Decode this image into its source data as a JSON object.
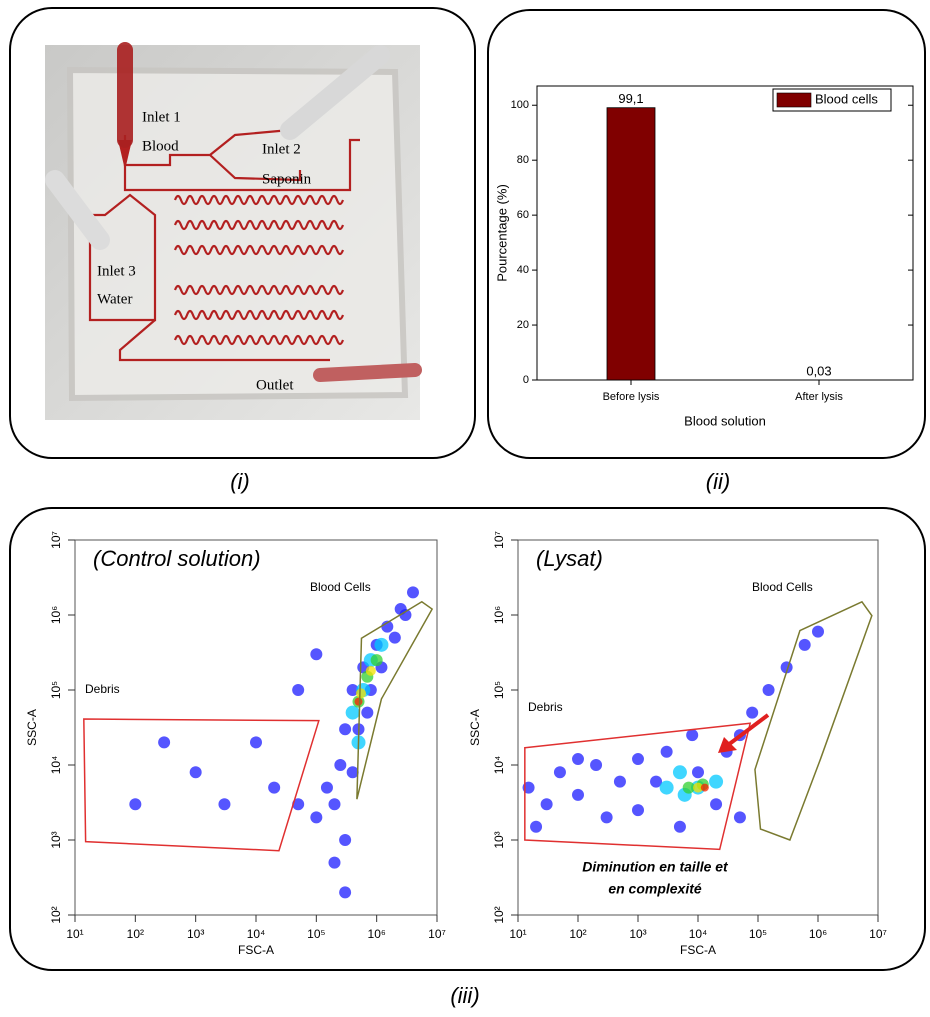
{
  "figure": {
    "captions": [
      "(i)",
      "(ii)",
      "(iii)"
    ]
  },
  "photo": {
    "labels": [
      "Inlet 1",
      "Blood",
      "Inlet 2",
      "Saponin",
      "Inlet 3",
      "Water",
      "Outlet"
    ]
  },
  "chart_data": [
    {
      "type": "bar",
      "xlabel": "Blood solution",
      "ylabel": "Pourcentage (%)",
      "categories": [
        "Before lysis",
        "After lysis"
      ],
      "series": [
        {
          "name": "Blood cells",
          "color": "#800000",
          "values": [
            99.1,
            0.03
          ],
          "value_labels": [
            "99,1",
            "0,03"
          ]
        }
      ],
      "ylim": [
        0,
        107
      ],
      "yticks": [
        0,
        20,
        40,
        60,
        80,
        100
      ],
      "legend": "upper right"
    },
    {
      "type": "scatter",
      "title": "(Control solution)",
      "xlabel": "FSC-A",
      "ylabel": "SSC-A",
      "xscale": "log",
      "yscale": "log",
      "xlim": [
        10,
        10000000
      ],
      "ylim": [
        100,
        10000000
      ],
      "xticks": [
        {
          "value": 10,
          "label": "10¹"
        },
        {
          "value": 100,
          "label": "10²"
        },
        {
          "value": 1000,
          "label": "10³"
        },
        {
          "value": 10000,
          "label": "10⁴"
        },
        {
          "value": 100000,
          "label": "10⁵"
        },
        {
          "value": 1000000,
          "label": "10⁶"
        },
        {
          "value": 10000000,
          "label": "10⁷"
        }
      ],
      "yticks": [
        {
          "value": 100,
          "label": "10²"
        },
        {
          "value": 1000,
          "label": "10³"
        },
        {
          "value": 10000,
          "label": "10⁴"
        },
        {
          "value": 100000,
          "label": "10⁵"
        },
        {
          "value": 1000000,
          "label": "10⁶"
        },
        {
          "value": 10000000,
          "label": "10⁷"
        }
      ],
      "series": [
        {
          "color": "#1c1cff",
          "marker_size": 6,
          "x": [
            200000,
            250000,
            300000,
            400000,
            600000,
            1000000,
            1500000,
            2500000,
            300000,
            200000,
            150000,
            800000,
            1200000,
            2000000,
            3000000,
            500000,
            700000,
            400000,
            100000,
            50000,
            20000,
            10000,
            3000,
            1000,
            300,
            100,
            50000,
            100000,
            4000000,
            300000
          ],
          "values": [
            3000,
            10000,
            30000,
            100000,
            200000,
            400000,
            700000,
            1200000,
            1000,
            500,
            5000,
            100000,
            200000,
            500000,
            1000000,
            30000,
            50000,
            8000,
            2000,
            3000,
            5000,
            20000,
            3000,
            8000,
            20000,
            3000,
            100000,
            300000,
            2000000,
            200
          ]
        },
        {
          "color": "#00c8ff",
          "marker_size": 7,
          "x": [
            400000,
            600000,
            800000,
            1200000,
            500000
          ],
          "values": [
            50000,
            100000,
            250000,
            400000,
            20000
          ]
        },
        {
          "color": "#30d030",
          "marker_size": 6,
          "x": [
            500000,
            700000,
            1000000
          ],
          "values": [
            70000,
            150000,
            250000
          ]
        },
        {
          "color": "#f0e000",
          "marker_size": 5,
          "x": [
            550000,
            800000
          ],
          "values": [
            90000,
            180000
          ]
        },
        {
          "color": "#ff2000",
          "marker_size": 4,
          "x": [
            500000
          ],
          "values": [
            70000
          ]
        }
      ],
      "gates": [
        {
          "name": "Debris",
          "color": "#e03030",
          "x": [
            14,
            110000,
            24000,
            15
          ],
          "y": [
            41000,
            39000,
            720,
            950
          ]
        },
        {
          "name": "Blood Cells",
          "color": "#7a7a30",
          "x": [
            560000,
            5600000,
            8300000,
            1200000,
            470000
          ],
          "y": [
            490000,
            1500000,
            1200000,
            76000,
            3500
          ]
        }
      ]
    },
    {
      "type": "scatter",
      "title": "(Lysat)",
      "xlabel": "FSC-A",
      "ylabel": "SSC-A",
      "xscale": "log",
      "yscale": "log",
      "xlim": [
        10,
        10000000
      ],
      "ylim": [
        100,
        10000000
      ],
      "xticks": [
        {
          "value": 10,
          "label": "10¹"
        },
        {
          "value": 100,
          "label": "10²"
        },
        {
          "value": 1000,
          "label": "10³"
        },
        {
          "value": 10000,
          "label": "10⁴"
        },
        {
          "value": 100000,
          "label": "10⁵"
        },
        {
          "value": 1000000,
          "label": "10⁶"
        },
        {
          "value": 10000000,
          "label": "10⁷"
        }
      ],
      "yticks": [
        {
          "value": 100,
          "label": "10²"
        },
        {
          "value": 1000,
          "label": "10³"
        },
        {
          "value": 10000,
          "label": "10⁴"
        },
        {
          "value": 100000,
          "label": "10⁵"
        },
        {
          "value": 1000000,
          "label": "10⁶"
        },
        {
          "value": 10000000,
          "label": "10⁷"
        }
      ],
      "series": [
        {
          "color": "#1c1cff",
          "marker_size": 6,
          "x": [
            15,
            30,
            50,
            100,
            200,
            300,
            500,
            1000,
            1000,
            2000,
            3000,
            5000,
            10000,
            20000,
            30000,
            50000,
            80000,
            150000,
            300000,
            600000,
            1000000,
            50000,
            100,
            20,
            8000
          ],
          "values": [
            5000,
            3000,
            8000,
            4000,
            10000,
            2000,
            6000,
            12000,
            2500,
            6000,
            15000,
            1500,
            8000,
            3000,
            15000,
            25000,
            50000,
            100000,
            200000,
            400000,
            600000,
            2000,
            12000,
            1500,
            25000
          ]
        },
        {
          "color": "#00c8ff",
          "marker_size": 7,
          "x": [
            3000,
            6000,
            10000,
            20000,
            5000
          ],
          "values": [
            5000,
            4000,
            5000,
            6000,
            8000
          ]
        },
        {
          "color": "#30d030",
          "marker_size": 6,
          "x": [
            7000,
            12000
          ],
          "values": [
            5000,
            5500
          ]
        },
        {
          "color": "#f0e000",
          "marker_size": 5,
          "x": [
            10000
          ],
          "values": [
            5000
          ]
        },
        {
          "color": "#ff2000",
          "marker_size": 4,
          "x": [
            13000
          ],
          "values": [
            5000
          ]
        }
      ],
      "gates": [
        {
          "name": "Debris",
          "color": "#e03030",
          "x": [
            13,
            74000,
            23000,
            13
          ],
          "y": [
            17000,
            36000,
            750,
            1000
          ]
        },
        {
          "name": "Blood Cells",
          "color": "#7a7a30",
          "x": [
            500000,
            5400000,
            7900000,
            1100000,
            340000,
            110000,
            89000
          ],
          "y": [
            620000,
            1500000,
            980000,
            12000,
            1000,
            1400,
            8700
          ]
        }
      ],
      "annotation": [
        "Diminution  en taille et",
        "en complexité"
      ]
    }
  ]
}
